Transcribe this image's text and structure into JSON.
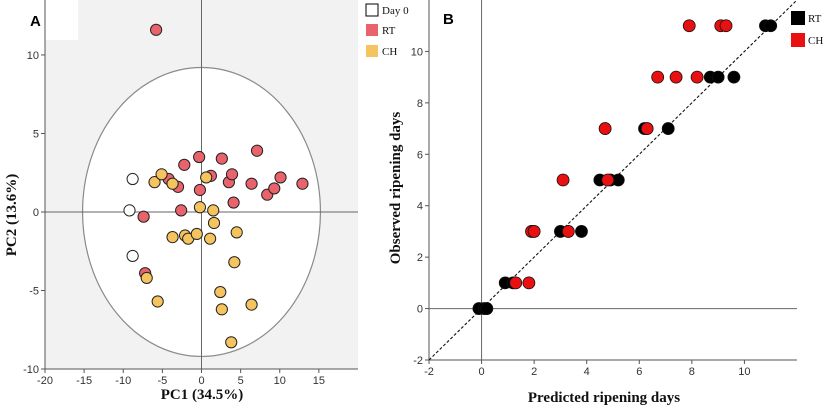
{
  "colors": {
    "day0": "#ffffff",
    "rt_pca": "#e8636b",
    "ch_pca": "#f6c45e",
    "rt_pred": "#000000",
    "ch_pred": "#e81010",
    "plot_bg_a": "#f2f2f2"
  },
  "chart_data": [
    {
      "type": "scatter",
      "panel_label": "A",
      "title": "",
      "xlabel": "PC1 (34.5%)",
      "ylabel": "PC2 (13.6%)",
      "xlim": [
        -20,
        20
      ],
      "ylim": [
        -10,
        13.5
      ],
      "xticks": [
        -20,
        -15,
        -10,
        -5,
        0,
        5,
        10,
        15
      ],
      "yticks": [
        -10,
        -5,
        0,
        5,
        10
      ],
      "confidence_ellipse": {
        "center": [
          0,
          0
        ],
        "semi_axis_x": 15.2,
        "semi_axis_y": 9.2
      },
      "legend": [
        "Day 0",
        "RT",
        "CH"
      ],
      "series": [
        {
          "name": "Day 0",
          "points": [
            [
              -8.8,
              2.1
            ],
            [
              -9.2,
              0.1
            ],
            [
              -8.8,
              -2.8
            ]
          ]
        },
        {
          "name": "RT",
          "points": [
            [
              -5.8,
              11.6
            ],
            [
              -4.2,
              2.1
            ],
            [
              -3.0,
              1.6
            ],
            [
              -2.2,
              3.0
            ],
            [
              -0.3,
              3.5
            ],
            [
              1.2,
              2.3
            ],
            [
              2.6,
              3.4
            ],
            [
              3.5,
              1.9
            ],
            [
              3.9,
              2.4
            ],
            [
              4.1,
              0.6
            ],
            [
              6.4,
              1.8
            ],
            [
              7.1,
              3.9
            ],
            [
              8.4,
              1.1
            ],
            [
              9.3,
              1.5
            ],
            [
              10.1,
              2.2
            ],
            [
              12.9,
              1.8
            ],
            [
              -2.6,
              0.1
            ],
            [
              -0.2,
              1.4
            ],
            [
              -7.4,
              -0.3
            ],
            [
              -7.2,
              -3.9
            ]
          ]
        },
        {
          "name": "CH",
          "points": [
            [
              -7.0,
              -4.2
            ],
            [
              -6.0,
              1.9
            ],
            [
              -5.1,
              2.4
            ],
            [
              -3.7,
              1.8
            ],
            [
              -3.7,
              -1.6
            ],
            [
              -2.1,
              -1.5
            ],
            [
              -1.7,
              -1.7
            ],
            [
              -0.6,
              -1.4
            ],
            [
              -0.2,
              0.3
            ],
            [
              1.5,
              0.1
            ],
            [
              1.6,
              -0.7
            ],
            [
              1.1,
              -1.7
            ],
            [
              0.6,
              2.2
            ],
            [
              4.5,
              -1.3
            ],
            [
              4.2,
              -3.2
            ],
            [
              2.4,
              -5.1
            ],
            [
              2.6,
              -6.2
            ],
            [
              6.4,
              -5.9
            ],
            [
              3.8,
              -8.3
            ],
            [
              -5.6,
              -5.7
            ]
          ]
        }
      ]
    },
    {
      "type": "scatter",
      "panel_label": "B",
      "title": "",
      "xlabel": "Predicted ripening days",
      "ylabel": "Observed ripening days",
      "xlim": [
        -2,
        12
      ],
      "ylim": [
        -2,
        12
      ],
      "xticks": [
        -2,
        0,
        2,
        4,
        6,
        8,
        10
      ],
      "yticks": [
        -2,
        0,
        2,
        4,
        6,
        8,
        10
      ],
      "identity_line": true,
      "legend": [
        "RT",
        "CH"
      ],
      "series": [
        {
          "name": "RT",
          "points": [
            [
              -0.1,
              0
            ],
            [
              0.1,
              0
            ],
            [
              0.2,
              0
            ],
            [
              0.9,
              1
            ],
            [
              1.2,
              1
            ],
            [
              3.0,
              3
            ],
            [
              3.8,
              3
            ],
            [
              4.5,
              5
            ],
            [
              4.9,
              5
            ],
            [
              5.2,
              5
            ],
            [
              6.2,
              7
            ],
            [
              7.1,
              7
            ],
            [
              8.7,
              9
            ],
            [
              9.0,
              9
            ],
            [
              9.6,
              9
            ],
            [
              10.8,
              11
            ],
            [
              11.0,
              11
            ]
          ]
        },
        {
          "name": "CH",
          "points": [
            [
              1.3,
              1
            ],
            [
              1.8,
              1
            ],
            [
              1.9,
              3
            ],
            [
              2.0,
              3
            ],
            [
              3.3,
              3
            ],
            [
              3.1,
              5
            ],
            [
              4.8,
              5
            ],
            [
              4.7,
              7
            ],
            [
              6.3,
              7
            ],
            [
              6.7,
              9
            ],
            [
              7.4,
              9
            ],
            [
              8.2,
              9
            ],
            [
              7.9,
              11
            ],
            [
              9.1,
              11
            ],
            [
              9.3,
              11
            ]
          ]
        }
      ]
    }
  ]
}
